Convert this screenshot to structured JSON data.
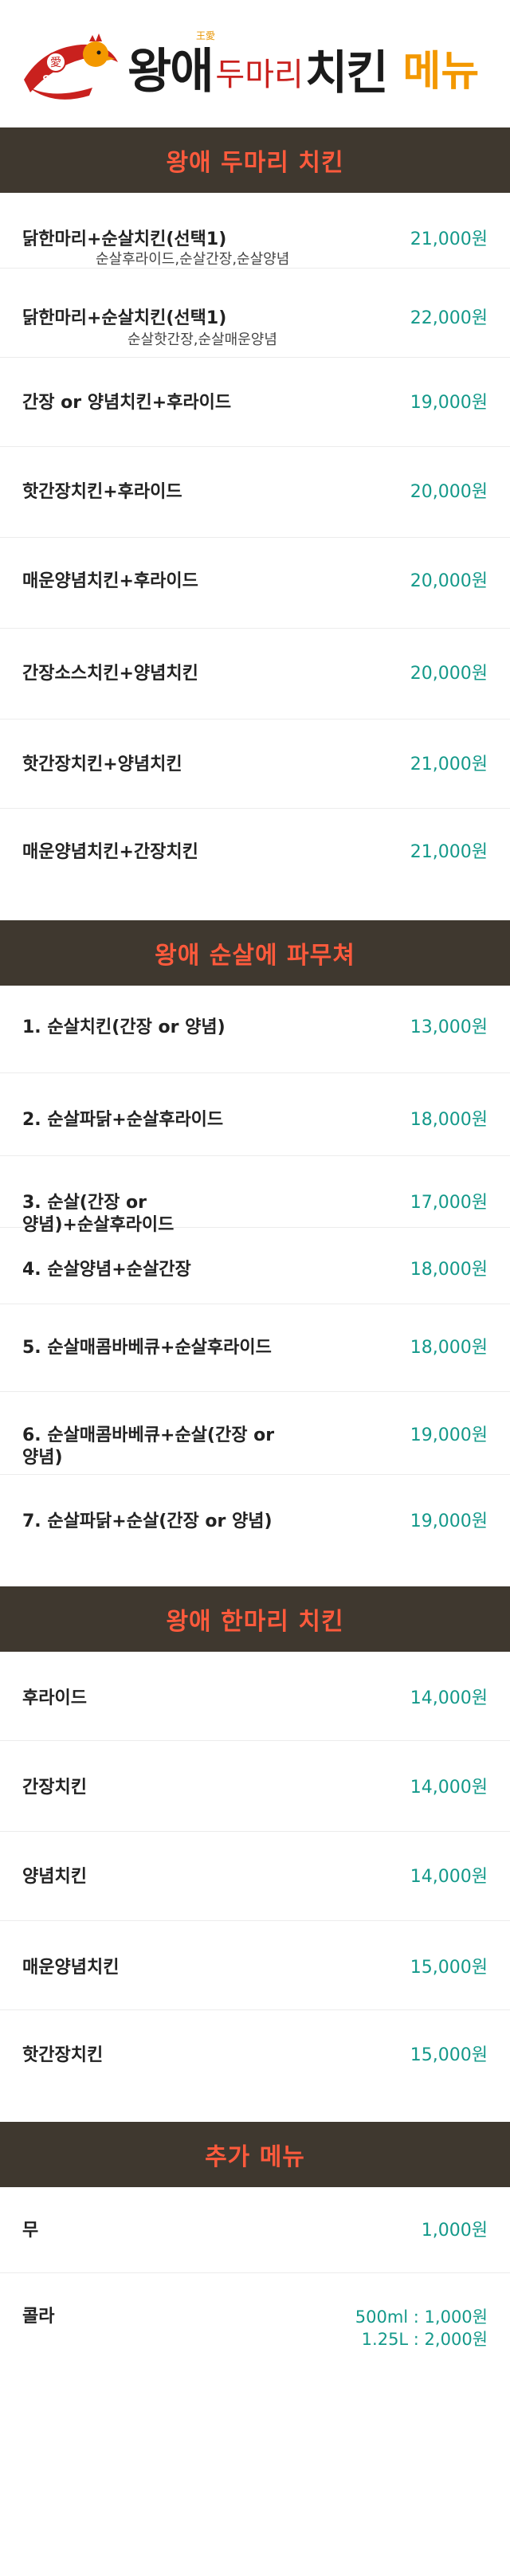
{
  "header": {
    "logo_text": "왕애치킨",
    "brand_small": "王愛",
    "brand_main": "왕애",
    "brand_sub": "두마리",
    "brand_chi": "치킨",
    "brand_menu": "메뉴"
  },
  "sections": [
    {
      "title": "왕애 두마리 치킨",
      "items": [
        {
          "name": "닭한마리+순살치킨(선택1)",
          "sub": "순살후라이드,순살간장,순살양념",
          "price": "21,000원"
        },
        {
          "name": "닭한마리+순살치킨(선택1)",
          "sub": "순살핫간장,순살매운양념",
          "price": "22,000원"
        },
        {
          "name": "간장 or 양념치킨+후라이드",
          "price": "19,000원"
        },
        {
          "name": "핫간장치킨+후라이드",
          "price": "20,000원"
        },
        {
          "name": "매운양념치킨+후라이드",
          "price": "20,000원"
        },
        {
          "name": "간장소스치킨+양념치킨",
          "price": "20,000원"
        },
        {
          "name": "핫간장치킨+양념치킨",
          "price": "21,000원"
        },
        {
          "name": "매운양념치킨+간장치킨",
          "price": "21,000원"
        }
      ]
    },
    {
      "title": "왕애 순살에 파무쳐",
      "items": [
        {
          "name": "1. 순살치킨(간장 or 양념)",
          "price": "13,000원"
        },
        {
          "name": "2. 순살파닭+순살후라이드",
          "price": "18,000원"
        },
        {
          "name_l1": "3. 순살(간장 or",
          "name_l2": "양념)+순살후라이드",
          "price": "17,000원"
        },
        {
          "name": "4. 순살양념+순살간장",
          "price": "18,000원"
        },
        {
          "name": "5. 순살매콤바베큐+순살후라이드",
          "price": "18,000원"
        },
        {
          "name_l1": "6. 순살매콤바베큐+순살(간장 or",
          "name_l2": "양념)",
          "price": "19,000원"
        },
        {
          "name": "7. 순살파닭+순살(간장 or 양념)",
          "price": "19,000원"
        }
      ]
    },
    {
      "title": "왕애 한마리 치킨",
      "items": [
        {
          "name": "후라이드",
          "price": "14,000원"
        },
        {
          "name": "간장치킨",
          "price": "14,000원"
        },
        {
          "name": "양념치킨",
          "price": "14,000원"
        },
        {
          "name": "매운양념치킨",
          "price": "15,000원"
        },
        {
          "name": "핫간장치킨",
          "price": "15,000원"
        }
      ]
    },
    {
      "title": "추가 메뉴",
      "items": [
        {
          "name": "무",
          "price": "1,000원"
        },
        {
          "name": "콜라",
          "price_l1": "500ml : 1,000원",
          "price_l2": "1.25L : 2,000원"
        }
      ]
    }
  ],
  "colors": {
    "section_bg": "#3f382f",
    "section_title": "#ff5a3c",
    "price": "#14998a",
    "brand_red": "#c9211e",
    "brand_orange": "#f39800"
  }
}
